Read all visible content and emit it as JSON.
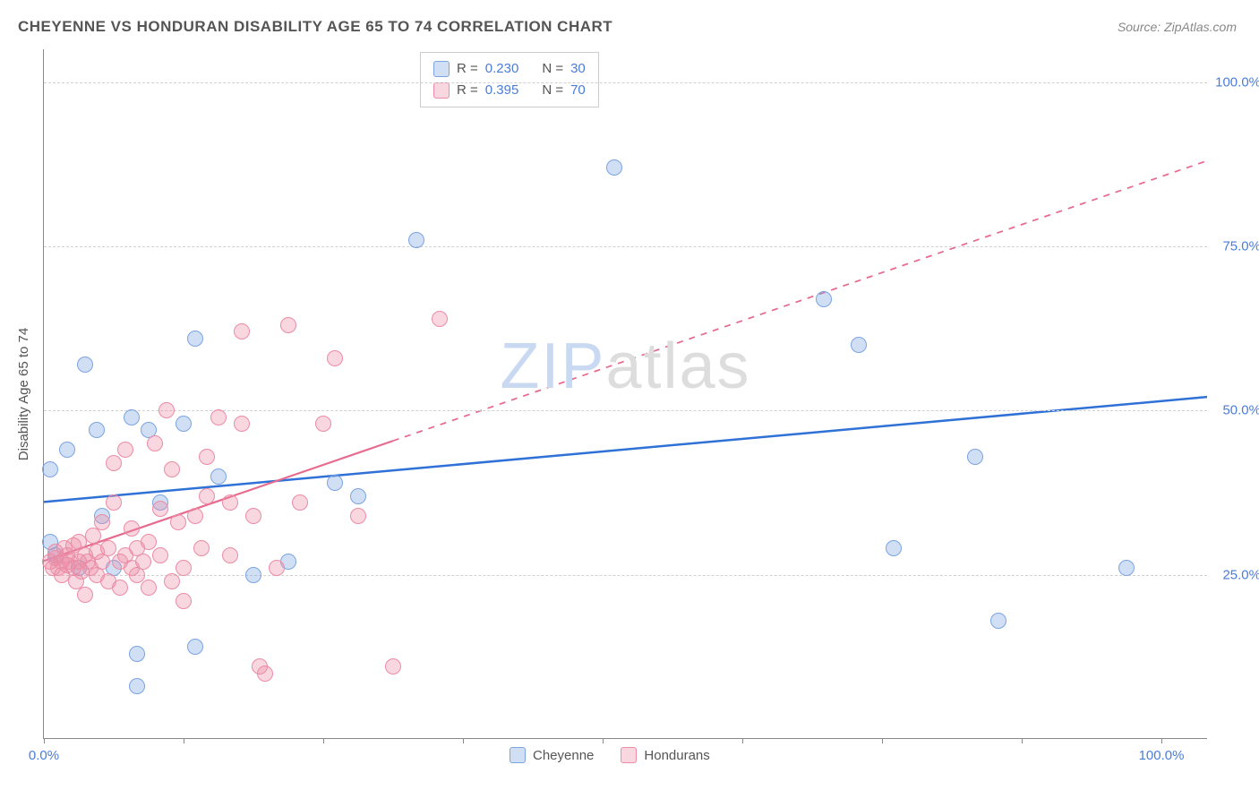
{
  "title": "CHEYENNE VS HONDURAN DISABILITY AGE 65 TO 74 CORRELATION CHART",
  "source_prefix": "Source: ",
  "source_name": "ZipAtlas.com",
  "ylabel": "Disability Age 65 to 74",
  "watermark_part1": "ZIP",
  "watermark_part2": "atlas",
  "watermark_color1": "#c9d9f2",
  "watermark_color2": "#dddddd",
  "chart": {
    "type": "scatter",
    "background_color": "#ffffff",
    "grid_color": "#d0d0d0",
    "axis_color": "#888888",
    "xlim": [
      0,
      100
    ],
    "ylim": [
      0,
      105
    ],
    "xtick_positions": [
      0,
      12,
      24,
      36,
      48,
      60,
      72,
      84,
      96
    ],
    "xtick_labels": {
      "0": "0.0%",
      "96": "100.0%"
    },
    "ytick_positions": [
      25,
      50,
      75,
      100
    ],
    "ytick_labels": {
      "25": "25.0%",
      "50": "50.0%",
      "75": "75.0%",
      "100": "100.0%"
    },
    "marker_radius": 9,
    "marker_border_width": 1.5,
    "series": [
      {
        "name": "Cheyenne",
        "fill_color": "rgba(122,164,226,0.35)",
        "stroke_color": "#7aa4e2",
        "trend": {
          "x1": 0,
          "y1": 36,
          "x2": 100,
          "y2": 52,
          "solid_until_x": 100,
          "stroke": "#2f71d6",
          "width": 2.5
        },
        "r_value": "0.230",
        "n_value": "30",
        "points": [
          [
            0.5,
            30
          ],
          [
            0.5,
            41
          ],
          [
            1,
            28
          ],
          [
            2,
            44
          ],
          [
            3,
            26
          ],
          [
            3.5,
            57
          ],
          [
            4.5,
            47
          ],
          [
            5,
            34
          ],
          [
            6,
            26
          ],
          [
            7.5,
            49
          ],
          [
            8,
            13
          ],
          [
            8,
            8
          ],
          [
            9,
            47
          ],
          [
            10,
            36
          ],
          [
            12,
            48
          ],
          [
            13,
            61
          ],
          [
            13,
            14
          ],
          [
            15,
            40
          ],
          [
            18,
            25
          ],
          [
            21,
            27
          ],
          [
            25,
            39
          ],
          [
            27,
            37
          ],
          [
            32,
            76
          ],
          [
            49,
            87
          ],
          [
            67,
            67
          ],
          [
            70,
            60
          ],
          [
            73,
            29
          ],
          [
            80,
            43
          ],
          [
            82,
            18
          ],
          [
            93,
            26
          ]
        ]
      },
      {
        "name": "Hondurans",
        "fill_color": "rgba(236,140,165,0.35)",
        "stroke_color": "#ec8ca5",
        "trend": {
          "x1": 0,
          "y1": 27,
          "x2": 100,
          "y2": 88,
          "solid_until_x": 30,
          "stroke": "#e76b8e",
          "width": 2.2
        },
        "r_value": "0.395",
        "n_value": "70",
        "points": [
          [
            0.5,
            27
          ],
          [
            0.8,
            26
          ],
          [
            1,
            27.5
          ],
          [
            1,
            28.5
          ],
          [
            1.2,
            26
          ],
          [
            1.5,
            27
          ],
          [
            1.5,
            25
          ],
          [
            1.8,
            29
          ],
          [
            2,
            26.5
          ],
          [
            2,
            28
          ],
          [
            2.2,
            27
          ],
          [
            2.5,
            26
          ],
          [
            2.5,
            29.5
          ],
          [
            2.8,
            24
          ],
          [
            3,
            27
          ],
          [
            3,
            30
          ],
          [
            3.2,
            25.5
          ],
          [
            3.5,
            28
          ],
          [
            3.5,
            22
          ],
          [
            3.8,
            27
          ],
          [
            4,
            26
          ],
          [
            4.2,
            31
          ],
          [
            4.5,
            25
          ],
          [
            4.5,
            28.5
          ],
          [
            5,
            27
          ],
          [
            5,
            33
          ],
          [
            5.5,
            24
          ],
          [
            5.5,
            29
          ],
          [
            6,
            42
          ],
          [
            6,
            36
          ],
          [
            6.5,
            27
          ],
          [
            6.5,
            23
          ],
          [
            7,
            28
          ],
          [
            7,
            44
          ],
          [
            7.5,
            26
          ],
          [
            7.5,
            32
          ],
          [
            8,
            25
          ],
          [
            8,
            29
          ],
          [
            8.5,
            27
          ],
          [
            9,
            30
          ],
          [
            9,
            23
          ],
          [
            9.5,
            45
          ],
          [
            10,
            35
          ],
          [
            10,
            28
          ],
          [
            10.5,
            50
          ],
          [
            11,
            24
          ],
          [
            11,
            41
          ],
          [
            11.5,
            33
          ],
          [
            12,
            26
          ],
          [
            12,
            21
          ],
          [
            13,
            34
          ],
          [
            13.5,
            29
          ],
          [
            14,
            43
          ],
          [
            14,
            37
          ],
          [
            15,
            49
          ],
          [
            16,
            36
          ],
          [
            16,
            28
          ],
          [
            17,
            48
          ],
          [
            17,
            62
          ],
          [
            18,
            34
          ],
          [
            18.5,
            11
          ],
          [
            19,
            10
          ],
          [
            20,
            26
          ],
          [
            21,
            63
          ],
          [
            22,
            36
          ],
          [
            24,
            48
          ],
          [
            25,
            58
          ],
          [
            27,
            34
          ],
          [
            30,
            11
          ],
          [
            34,
            64
          ]
        ]
      }
    ]
  },
  "legend_bottom": {
    "series1_label": "Cheyenne",
    "series2_label": "Hondurans"
  },
  "legend_top": {
    "r_label": "R =",
    "n_label": "N ="
  },
  "label_color": "#4a7dd8",
  "text_color": "#555555"
}
